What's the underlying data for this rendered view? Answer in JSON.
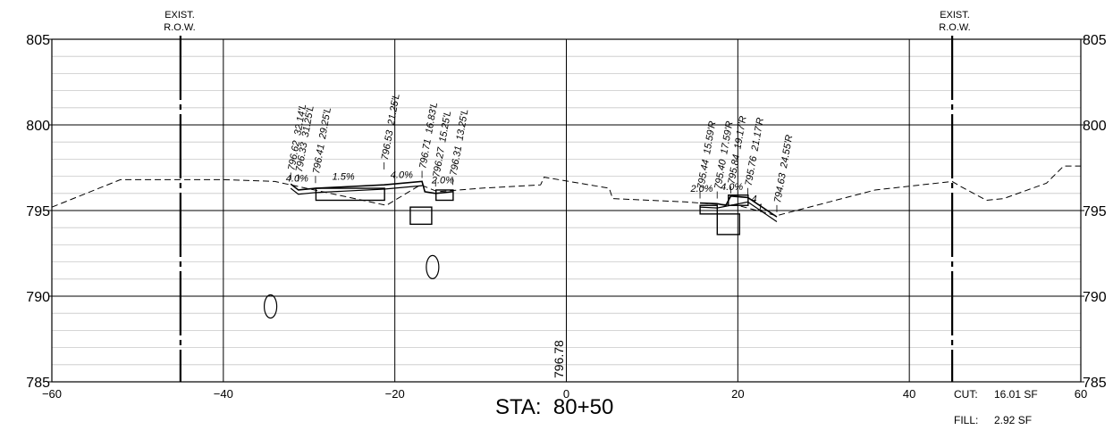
{
  "row_labels": {
    "left": {
      "line1": "EXIST.",
      "line2": "R.O.W.",
      "offset": -45
    },
    "right": {
      "line1": "EXIST.",
      "line2": "R.O.W.",
      "offset": 45
    }
  },
  "station_label": "STA:  80+50",
  "centerline_elevation": "796.78",
  "quantities": {
    "cut": {
      "label": "CUT:",
      "value": "16.01 SF"
    },
    "fill": {
      "label": "FILL:",
      "value": "2.92 SF"
    }
  },
  "axes": {
    "x_range": [
      -60,
      60
    ],
    "y_range": [
      785,
      805
    ],
    "x_ticks": [
      {
        "value": -60,
        "label": "−60"
      },
      {
        "value": -40,
        "label": "−40"
      },
      {
        "value": -20,
        "label": "−20"
      },
      {
        "value": 0,
        "label": "0"
      },
      {
        "value": 20,
        "label": "20"
      },
      {
        "value": 40,
        "label": "40"
      },
      {
        "value": 60,
        "label": "60"
      }
    ],
    "y_ticks": [
      {
        "value": 805,
        "label": "805"
      },
      {
        "value": 800,
        "label": "800"
      },
      {
        "value": 795,
        "label": "795"
      },
      {
        "value": 790,
        "label": "790"
      },
      {
        "value": 785,
        "label": "785"
      }
    ],
    "minor_y_step": 1,
    "major_x_step": 20
  },
  "existing_ground": [
    [
      -60,
      795.2
    ],
    [
      -52,
      796.8
    ],
    [
      -40,
      796.8
    ],
    [
      -34,
      796.7
    ],
    [
      -21,
      795.3
    ],
    [
      -17,
      796.5
    ],
    [
      -15,
      796.1
    ],
    [
      -10,
      796.3
    ],
    [
      -3,
      796.5
    ],
    [
      -2.6,
      796.95
    ],
    [
      5,
      796.3
    ],
    [
      5.4,
      795.7
    ],
    [
      14,
      795.5
    ],
    [
      16.5,
      795.4
    ],
    [
      20,
      795.3
    ],
    [
      24.5,
      794.7
    ],
    [
      36,
      796.2
    ],
    [
      45,
      796.7
    ],
    [
      46,
      796.4
    ],
    [
      49,
      795.6
    ],
    [
      51,
      795.7
    ],
    [
      56,
      796.6
    ],
    [
      58,
      797.6
    ],
    [
      60,
      797.6
    ]
  ],
  "grade_annotations": [
    {
      "text": "4.0%",
      "x": -31.4,
      "y": 796.7
    },
    {
      "text": "1.5%",
      "x": -26,
      "y": 796.8
    },
    {
      "text": "4.0%",
      "x": -19.2,
      "y": 796.9
    },
    {
      "text": "2.0%",
      "x": -14.4,
      "y": 796.6
    },
    {
      "text": "2.0%",
      "x": 15.8,
      "y": 796.1
    },
    {
      "text": "4.0%",
      "x": 19.3,
      "y": 796.2
    },
    {
      "text": "4",
      "x": 21.9,
      "y": 795.5
    },
    {
      "text": "1",
      "x": 22.6,
      "y": 795.0
    }
  ],
  "point_labels": [
    {
      "text": "796.62  32.14'L",
      "x": -32.14,
      "y": 796.8
    },
    {
      "text": "796.33  31.25'L",
      "x": -31.25,
      "y": 796.7
    },
    {
      "text": "796.41  29.25'L",
      "x": -29.25,
      "y": 796.6
    },
    {
      "text": "796.53  21.25'L",
      "x": -21.25,
      "y": 797.4
    },
    {
      "text": "796.71  16.83'L",
      "x": -16.83,
      "y": 796.9
    },
    {
      "text": "796.27  15.25'L",
      "x": -15.25,
      "y": 796.4
    },
    {
      "text": "796.31  13.25'L",
      "x": -13.25,
      "y": 796.5
    },
    {
      "text": "795.44  15.59'R",
      "x": 15.59,
      "y": 795.7
    },
    {
      "text": "795.40  17.59'R",
      "x": 17.59,
      "y": 795.7
    },
    {
      "text": "795.84  19.17'R",
      "x": 19.17,
      "y": 796.0
    },
    {
      "text": "795.76  21.17'R",
      "x": 21.17,
      "y": 795.9
    },
    {
      "text": "794.63  24.55'R",
      "x": 24.55,
      "y": 794.9
    }
  ],
  "curbs": [
    {
      "x1": -29.2,
      "x2": -21.2,
      "y_top": 796.3,
      "y_bottom": 795.6
    },
    {
      "x1": -18.2,
      "x2": -15.7,
      "y_top": 795.2,
      "y_bottom": 794.2
    },
    {
      "x1": -15.2,
      "x2": -13.2,
      "y_top": 796.2,
      "y_bottom": 795.6
    },
    {
      "x1": 15.6,
      "x2": 17.6,
      "y_top": 795.3,
      "y_bottom": 794.8
    },
    {
      "x1": 17.6,
      "x2": 20.2,
      "y_top": 794.8,
      "y_bottom": 793.6
    },
    {
      "x1": 18.9,
      "x2": 21.2,
      "y_top": 795.9,
      "y_bottom": 795.3
    }
  ],
  "drain_pipes": [
    {
      "x": -34.5,
      "y": 789.4
    },
    {
      "x": -15.6,
      "y": 791.7
    }
  ]
}
